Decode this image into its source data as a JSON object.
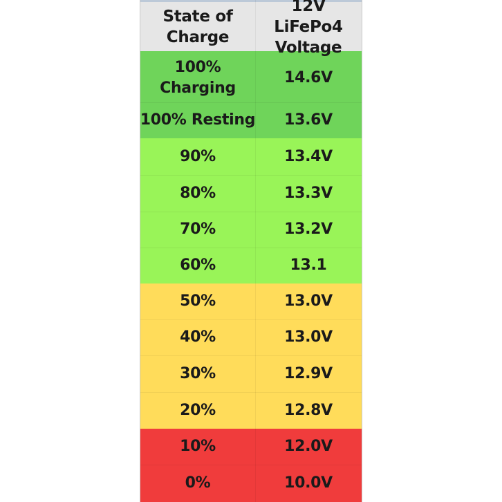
{
  "table": {
    "headers": [
      "State of Charge",
      "12V LiFePo4 Voltage"
    ],
    "rows": [
      {
        "soc": "100% Charging",
        "voltage": "14.6V"
      },
      {
        "soc": "100% Resting",
        "voltage": "13.6V"
      },
      {
        "soc": "90%",
        "voltage": "13.4V"
      },
      {
        "soc": "80%",
        "voltage": "13.3V"
      },
      {
        "soc": "70%",
        "voltage": "13.2V"
      },
      {
        "soc": "60%",
        "voltage": "13.1"
      },
      {
        "soc": "50%",
        "voltage": "13.0V"
      },
      {
        "soc": "40%",
        "voltage": "13.0V"
      },
      {
        "soc": "30%",
        "voltage": "12.9V"
      },
      {
        "soc": "20%",
        "voltage": "12.8V"
      },
      {
        "soc": "10%",
        "voltage": "12.0V"
      },
      {
        "soc": "0%",
        "voltage": "10.0V"
      }
    ]
  },
  "colors": {
    "header_bg": "#e6e6e6",
    "full_green": "#6fd45a",
    "light_green": "#99f458",
    "yellow": "#ffdc5a",
    "red": "#f03c3c",
    "text": "#1a1a1a"
  }
}
